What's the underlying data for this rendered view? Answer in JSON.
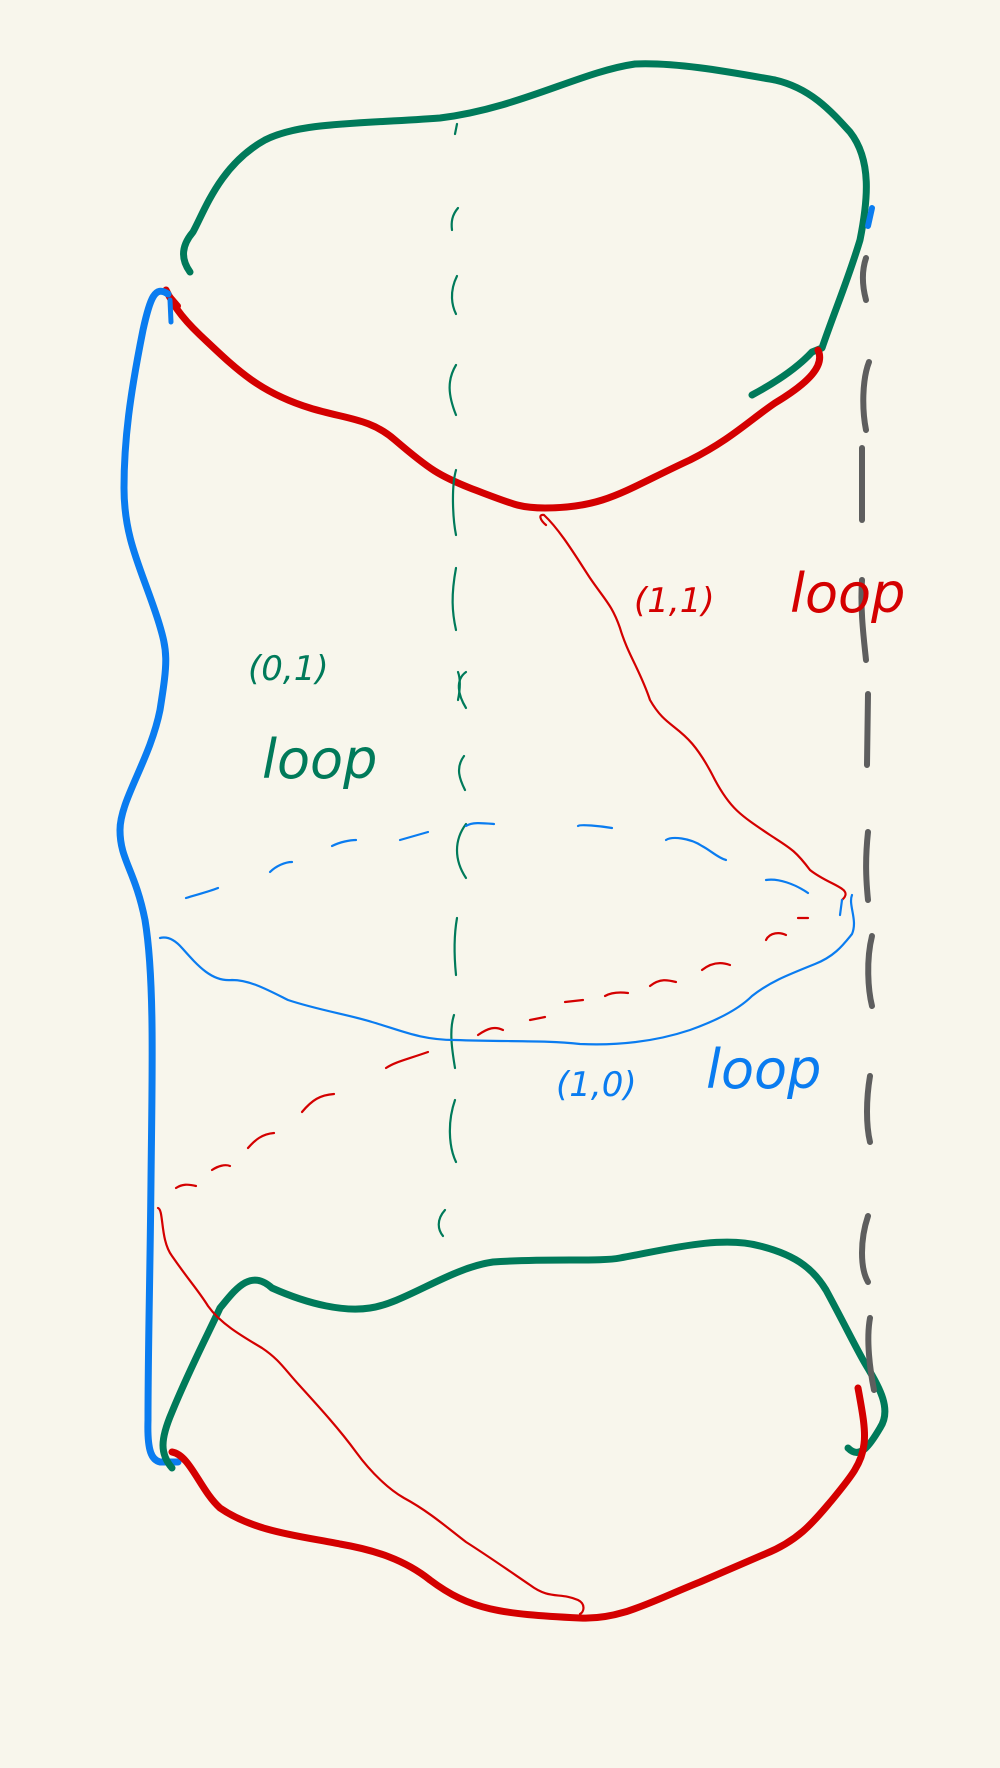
{
  "labels": {
    "loop_01": {
      "line1": "(0,1)",
      "line2": "loop"
    },
    "loop_11": {
      "line1": "(1,1)",
      "line2": "loop"
    },
    "loop_10": {
      "line1": "(1,0)",
      "line2": "loop"
    }
  },
  "colors": {
    "background": "#f8f6ec",
    "green": "#007a5a",
    "red": "#d40000",
    "blue": "#0a7cf0",
    "gray": "#5e5e5e"
  }
}
